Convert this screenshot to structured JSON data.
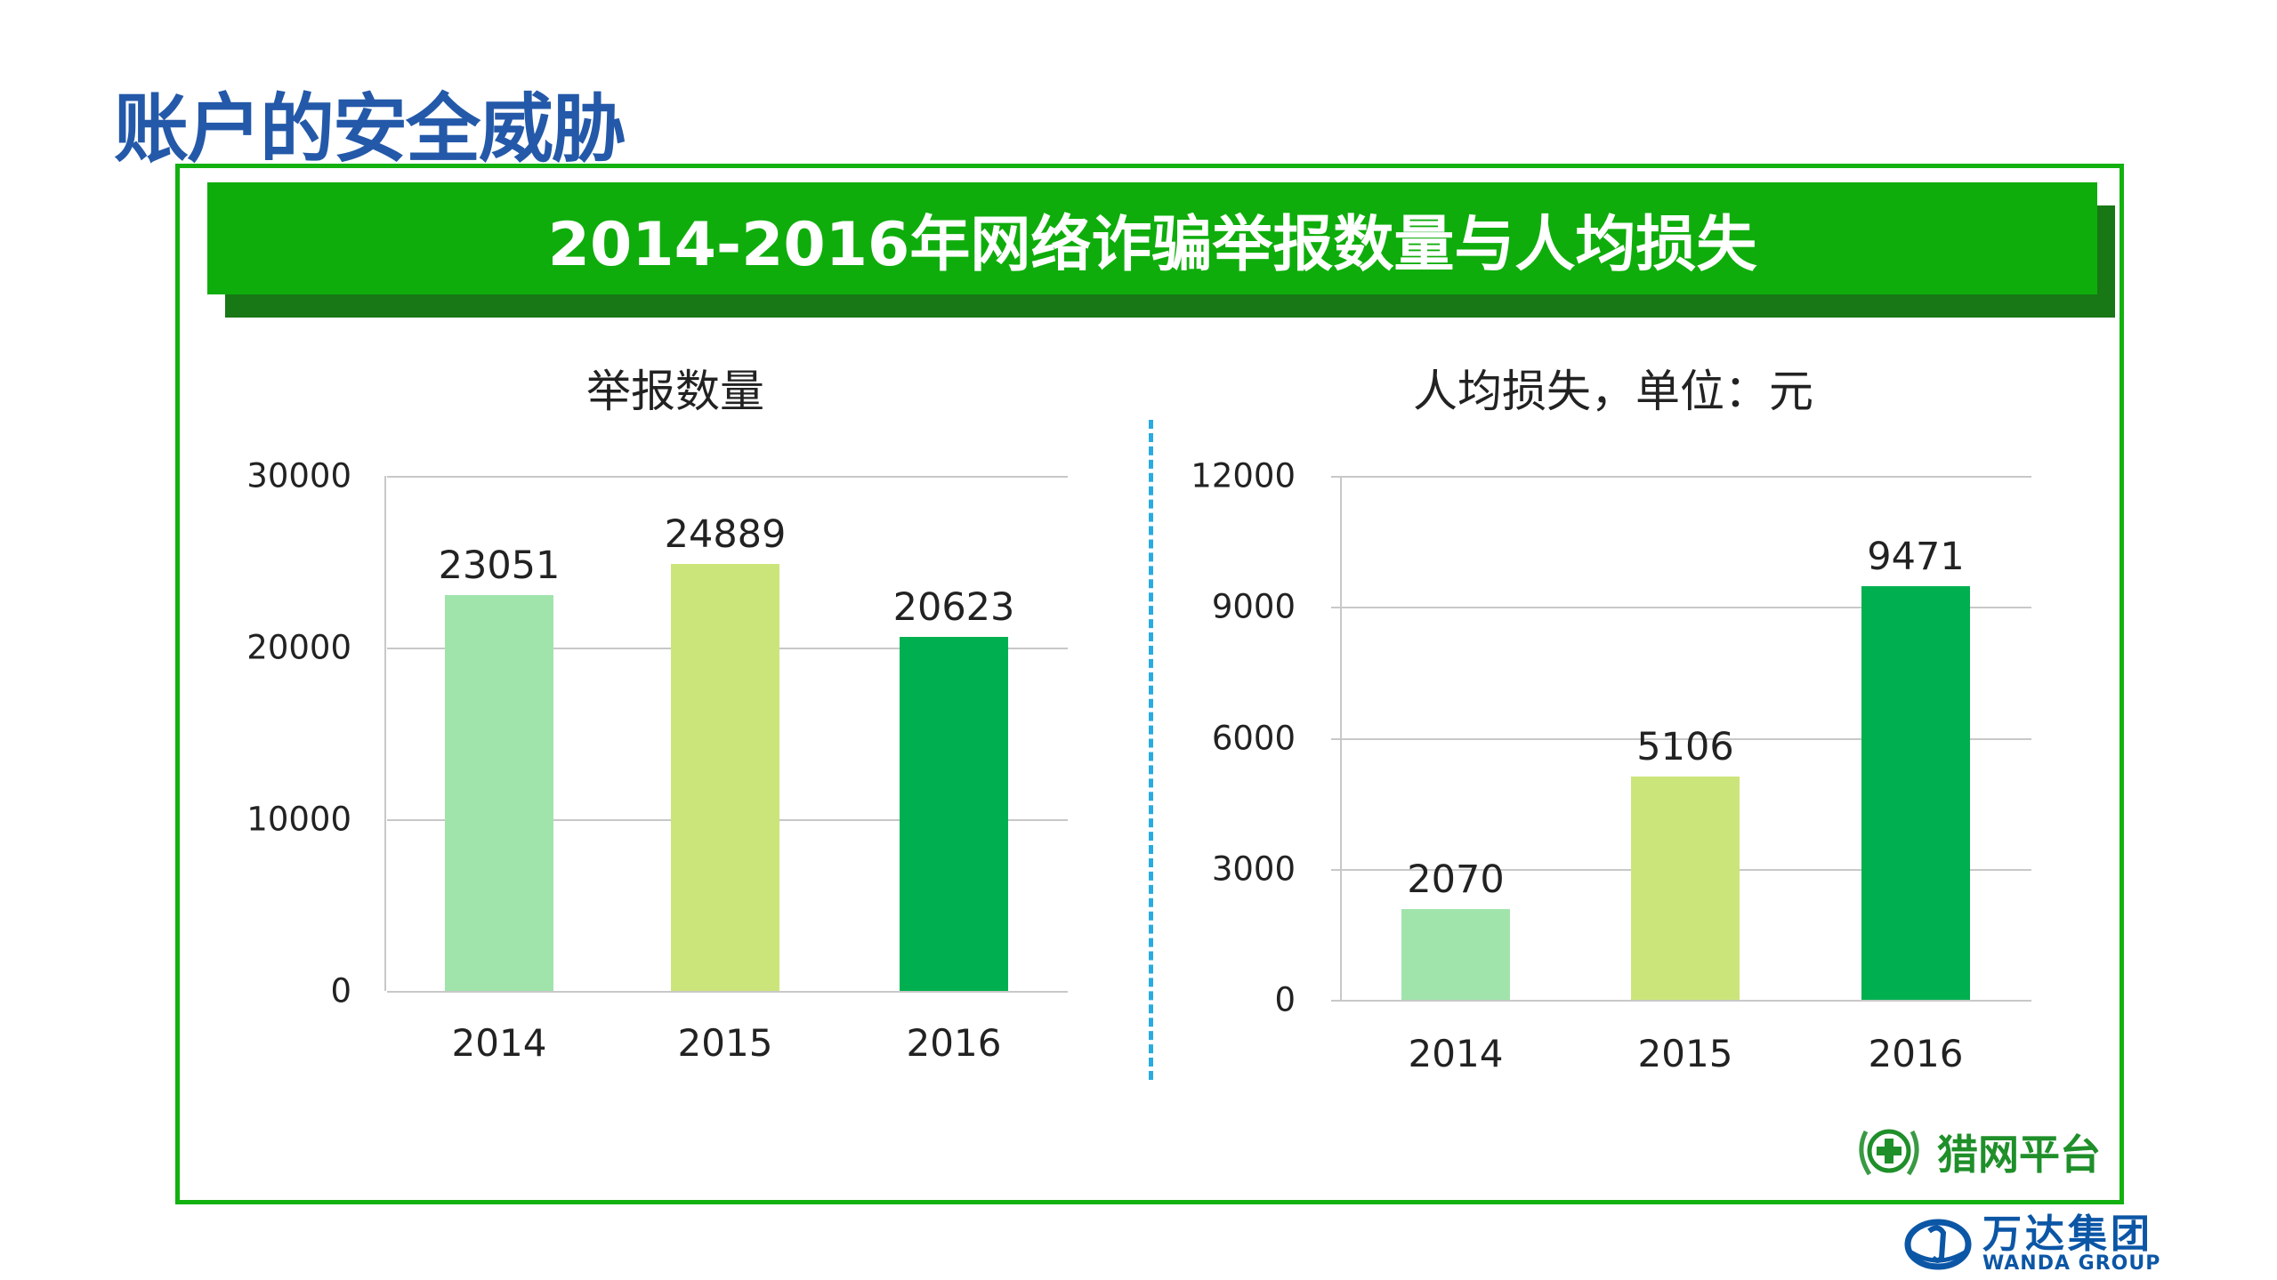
{
  "slide": {
    "title": "账户的安全威胁"
  },
  "banner": {
    "title": "2014-2016年网络诈骗举报数量与人均损失"
  },
  "chart_data": [
    {
      "type": "bar",
      "title": "举报数量",
      "categories": [
        "2014",
        "2015",
        "2016"
      ],
      "values": [
        23051,
        24889,
        20623
      ],
      "ylim": [
        0,
        30000
      ],
      "yticks": [
        "0",
        "10000",
        "20000",
        "30000"
      ],
      "grid": true,
      "colors": [
        "#a0e4ac",
        "#cce57a",
        "#00b050"
      ]
    },
    {
      "type": "bar",
      "title": "人均损失，单位：元",
      "categories": [
        "2014",
        "2015",
        "2016"
      ],
      "values": [
        2070,
        5106,
        9471
      ],
      "ylim": [
        0,
        12000
      ],
      "yticks": [
        "0",
        "3000",
        "6000",
        "9000",
        "12000"
      ],
      "grid": true,
      "colors": [
        "#a0e4ac",
        "#cce57a",
        "#00b050"
      ]
    }
  ],
  "logos": {
    "liewang": "猎网平台",
    "wanda_cn": "万达集团",
    "wanda_en": "WANDA GROUP"
  },
  "colors": {
    "title": "#2459a9",
    "banner": "#0fad0c",
    "banner_shadow": "#187815",
    "frame": "#13b10f",
    "divider": "#29abe2"
  }
}
